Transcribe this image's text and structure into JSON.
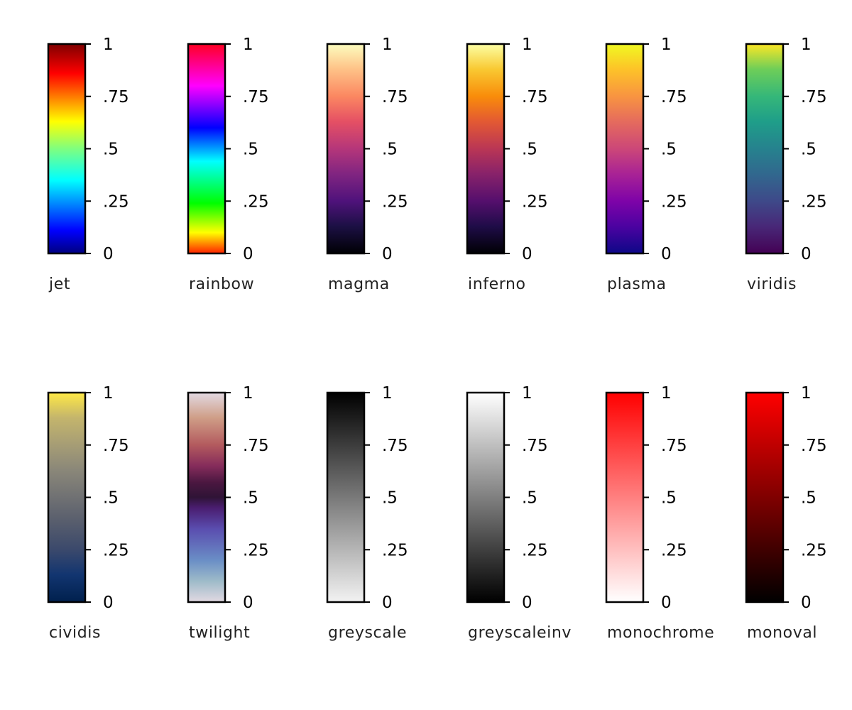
{
  "tick_labels": [
    "0",
    ".25",
    ".5",
    ".75",
    "1"
  ],
  "tick_values": [
    0,
    0.25,
    0.5,
    0.75,
    1
  ],
  "colormaps": [
    {
      "name": "jet",
      "stops": [
        [
          0,
          "#00007f"
        ],
        [
          0.11,
          "#0000ff"
        ],
        [
          0.35,
          "#00ffff"
        ],
        [
          0.5,
          "#7fff7f"
        ],
        [
          0.63,
          "#ffff00"
        ],
        [
          0.86,
          "#ff0000"
        ],
        [
          1,
          "#7f0000"
        ]
      ]
    },
    {
      "name": "rainbow",
      "stops": [
        [
          0,
          "#ff2000"
        ],
        [
          0.1,
          "#ffff00"
        ],
        [
          0.24,
          "#00ff00"
        ],
        [
          0.44,
          "#00ffff"
        ],
        [
          0.6,
          "#0000ff"
        ],
        [
          0.8,
          "#ff00ff"
        ],
        [
          1,
          "#ff0022"
        ]
      ]
    },
    {
      "name": "magma",
      "stops": [
        [
          0,
          "#000004"
        ],
        [
          0.13,
          "#1c1044"
        ],
        [
          0.25,
          "#4f127b"
        ],
        [
          0.38,
          "#812581"
        ],
        [
          0.5,
          "#b5367a"
        ],
        [
          0.63,
          "#e55064"
        ],
        [
          0.75,
          "#fb8761"
        ],
        [
          0.88,
          "#fec287"
        ],
        [
          1,
          "#fcfdbf"
        ]
      ]
    },
    {
      "name": "inferno",
      "stops": [
        [
          0,
          "#000004"
        ],
        [
          0.13,
          "#1f0c48"
        ],
        [
          0.25,
          "#550f6d"
        ],
        [
          0.38,
          "#88226a"
        ],
        [
          0.5,
          "#ba3655"
        ],
        [
          0.63,
          "#e35933"
        ],
        [
          0.75,
          "#f98c0a"
        ],
        [
          0.88,
          "#f9c932"
        ],
        [
          1,
          "#fcffa4"
        ]
      ]
    },
    {
      "name": "plasma",
      "stops": [
        [
          0,
          "#0d0887"
        ],
        [
          0.13,
          "#4c02a1"
        ],
        [
          0.25,
          "#7e03a8"
        ],
        [
          0.38,
          "#a92395"
        ],
        [
          0.5,
          "#cc4778"
        ],
        [
          0.63,
          "#e56b5d"
        ],
        [
          0.75,
          "#f89441"
        ],
        [
          0.88,
          "#fdc328"
        ],
        [
          1,
          "#f0f921"
        ]
      ]
    },
    {
      "name": "viridis",
      "stops": [
        [
          0,
          "#440154"
        ],
        [
          0.13,
          "#482878"
        ],
        [
          0.25,
          "#3e4989"
        ],
        [
          0.38,
          "#31688e"
        ],
        [
          0.5,
          "#26828e"
        ],
        [
          0.63,
          "#1f9e89"
        ],
        [
          0.75,
          "#35b779"
        ],
        [
          0.88,
          "#6ece58"
        ],
        [
          1,
          "#fde725"
        ]
      ]
    },
    {
      "name": "cividis",
      "stops": [
        [
          0,
          "#00204d"
        ],
        [
          0.13,
          "#123570"
        ],
        [
          0.25,
          "#3b496c"
        ],
        [
          0.38,
          "#575d6d"
        ],
        [
          0.5,
          "#707173"
        ],
        [
          0.63,
          "#8a8779"
        ],
        [
          0.75,
          "#a69d75"
        ],
        [
          0.88,
          "#c4b56c"
        ],
        [
          1,
          "#ffe945"
        ]
      ]
    },
    {
      "name": "twilight",
      "stops": [
        [
          0,
          "#e2d9e2"
        ],
        [
          0.1,
          "#9ebbc9"
        ],
        [
          0.2,
          "#6a8ec6"
        ],
        [
          0.35,
          "#5a4daf"
        ],
        [
          0.45,
          "#4a1d70"
        ],
        [
          0.5,
          "#2f1436"
        ],
        [
          0.57,
          "#4a1740"
        ],
        [
          0.65,
          "#852c5b"
        ],
        [
          0.75,
          "#b35a5e"
        ],
        [
          0.88,
          "#cf9e87"
        ],
        [
          1,
          "#e2d9e2"
        ]
      ]
    },
    {
      "name": "greyscale",
      "stops": [
        [
          0,
          "#f2f2f2"
        ],
        [
          1,
          "#000000"
        ]
      ]
    },
    {
      "name": "greyscaleinv",
      "stops": [
        [
          0,
          "#000000"
        ],
        [
          1,
          "#ffffff"
        ]
      ]
    },
    {
      "name": "monochrome",
      "stops": [
        [
          0,
          "#ffffff"
        ],
        [
          1,
          "#ff0000"
        ]
      ]
    },
    {
      "name": "monoval",
      "stops": [
        [
          0,
          "#000000"
        ],
        [
          1,
          "#ff0000"
        ]
      ]
    }
  ]
}
